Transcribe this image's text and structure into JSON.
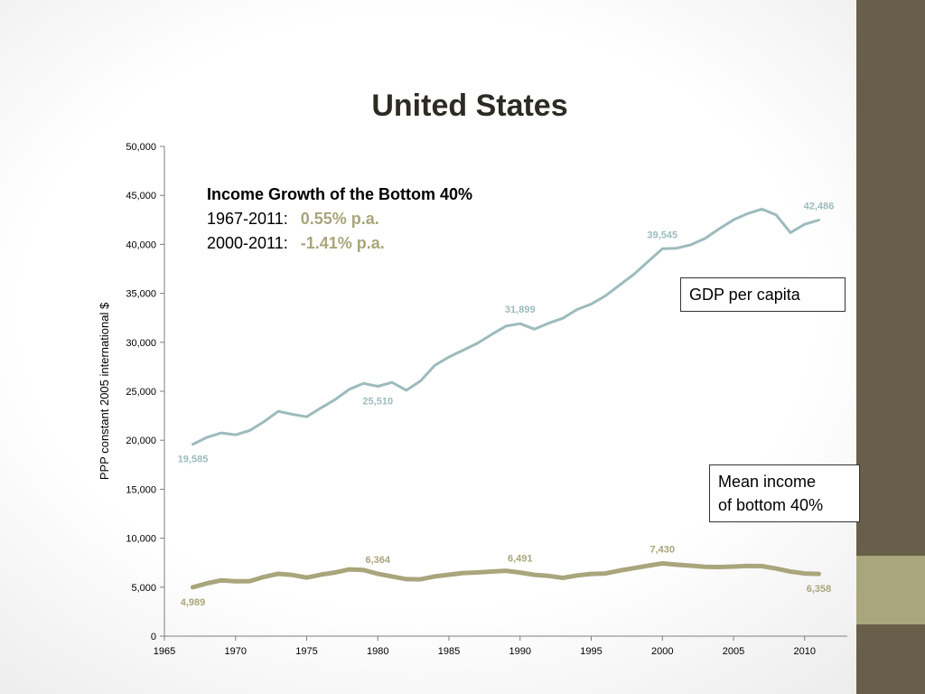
{
  "title": "United States",
  "annotation": {
    "heading": "Income Growth of the Bottom 40%",
    "rows": [
      {
        "period": "1967-2011:",
        "rate": "0.55% p.a."
      },
      {
        "period": "2000-2011:",
        "rate": "-1.41% p.a."
      }
    ]
  },
  "legend_boxes": {
    "gdp": "GDP per capita",
    "mean_line1": "Mean income",
    "mean_line2": "of bottom 40%"
  },
  "colors": {
    "gdp": "#9dbbbd",
    "mean": "#a9a57c",
    "axis": "#7f7f7f",
    "sidebar_dark": "#675f49",
    "sidebar_light": "#a9a57c"
  },
  "chart_data": {
    "type": "line",
    "ylabel": "PPP constant 2005 international $",
    "xlim": [
      1965,
      2013
    ],
    "ylim": [
      0,
      50000
    ],
    "x_ticks": [
      1965,
      1970,
      1975,
      1980,
      1985,
      1990,
      1995,
      2000,
      2005,
      2010
    ],
    "y_ticks": [
      0,
      5000,
      10000,
      15000,
      20000,
      25000,
      30000,
      35000,
      40000,
      45000,
      50000
    ],
    "y_tick_labels": [
      "0",
      "5,000",
      "10,000",
      "15,000",
      "20,000",
      "25,000",
      "30,000",
      "35,000",
      "40,000",
      "45,000",
      "50,000"
    ],
    "grid": false,
    "series": [
      {
        "key": "gdp",
        "x": [
          1967,
          1968,
          1969,
          1970,
          1971,
          1972,
          1973,
          1974,
          1975,
          1976,
          1977,
          1978,
          1979,
          1980,
          1981,
          1982,
          1983,
          1984,
          1985,
          1986,
          1987,
          1988,
          1989,
          1990,
          1991,
          1992,
          1993,
          1994,
          1995,
          1996,
          1997,
          1998,
          1999,
          2000,
          2001,
          2002,
          2003,
          2004,
          2005,
          2006,
          2007,
          2008,
          2009,
          2010,
          2011
        ],
        "values": [
          19585,
          20300,
          20750,
          20550,
          21000,
          21900,
          22950,
          22650,
          22400,
          23300,
          24150,
          25200,
          25800,
          25510,
          25900,
          25100,
          26050,
          27650,
          28500,
          29200,
          29900,
          30800,
          31650,
          31899,
          31350,
          31950,
          32450,
          33350,
          33900,
          34750,
          35850,
          36950,
          38250,
          39545,
          39600,
          39950,
          40600,
          41600,
          42500,
          43150,
          43600,
          43000,
          41200,
          42050,
          42486
        ],
        "point_labels": [
          {
            "x": 1967,
            "y": 19585,
            "text": "19,585",
            "pos": "below"
          },
          {
            "x": 1980,
            "y": 25510,
            "text": "25,510",
            "pos": "below"
          },
          {
            "x": 1990,
            "y": 31899,
            "text": "31,899",
            "pos": "above"
          },
          {
            "x": 2000,
            "y": 39545,
            "text": "39,545",
            "pos": "above"
          },
          {
            "x": 2011,
            "y": 42486,
            "text": "42,486",
            "pos": "above"
          }
        ]
      },
      {
        "key": "mean",
        "x": [
          1967,
          1968,
          1969,
          1970,
          1971,
          1972,
          1973,
          1974,
          1975,
          1976,
          1977,
          1978,
          1979,
          1980,
          1981,
          1982,
          1983,
          1984,
          1985,
          1986,
          1987,
          1988,
          1989,
          1990,
          1991,
          1992,
          1993,
          1994,
          1995,
          1996,
          1997,
          1998,
          1999,
          2000,
          2001,
          2002,
          2003,
          2004,
          2005,
          2006,
          2007,
          2008,
          2009,
          2010,
          2011
        ],
        "values": [
          4989,
          5400,
          5700,
          5600,
          5620,
          6050,
          6364,
          6250,
          5980,
          6280,
          6500,
          6820,
          6750,
          6364,
          6100,
          5820,
          5800,
          6100,
          6270,
          6450,
          6500,
          6600,
          6680,
          6491,
          6260,
          6150,
          5950,
          6200,
          6360,
          6400,
          6700,
          6950,
          7200,
          7430,
          7300,
          7200,
          7080,
          7060,
          7100,
          7180,
          7150,
          6900,
          6600,
          6400,
          6358
        ],
        "point_labels": [
          {
            "x": 1967,
            "y": 4989,
            "text": "4,989",
            "pos": "below"
          },
          {
            "x": 1980,
            "y": 6364,
            "text": "6,364",
            "pos": "above"
          },
          {
            "x": 1990,
            "y": 6491,
            "text": "6,491",
            "pos": "above"
          },
          {
            "x": 2000,
            "y": 7430,
            "text": "7,430",
            "pos": "above"
          },
          {
            "x": 2011,
            "y": 6358,
            "text": "6,358",
            "pos": "below"
          }
        ]
      }
    ]
  }
}
